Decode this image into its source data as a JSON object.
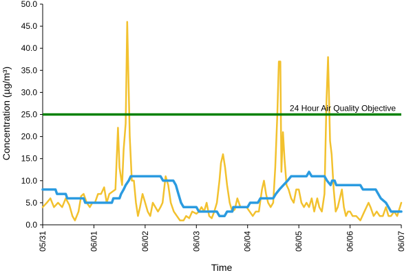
{
  "chart_data": {
    "type": "line",
    "title": "",
    "xlabel": "Time",
    "ylabel": "Concentration (µg/m³)",
    "ylim": [
      0,
      50
    ],
    "xlim": [
      0,
      7
    ],
    "y_tick_labels": [
      "0.0",
      "5.0",
      "10.0",
      "15.0",
      "20.0",
      "25.0",
      "30.0",
      "35.0",
      "40.0",
      "45.0",
      "50.0"
    ],
    "x_tick_labels": [
      "05/31",
      "06/01",
      "06/02",
      "06/03",
      "06/04",
      "06/05",
      "06/06",
      "06/07"
    ],
    "x_unit": "days from 05/31 00:00",
    "grid": false,
    "legend": "none",
    "annotations": [
      {
        "text": "24 Hour Air Quality Objective",
        "y": 25.0
      }
    ],
    "objective_line": {
      "y": 25.0,
      "color": "#008000"
    },
    "series": [
      {
        "color": "#f2c12e",
        "points": [
          [
            0.0,
            4
          ],
          [
            0.08,
            5
          ],
          [
            0.15,
            6
          ],
          [
            0.22,
            4
          ],
          [
            0.3,
            5
          ],
          [
            0.38,
            4
          ],
          [
            0.45,
            6
          ],
          [
            0.52,
            4.5
          ],
          [
            0.58,
            2
          ],
          [
            0.63,
            1
          ],
          [
            0.7,
            3
          ],
          [
            0.75,
            6.5
          ],
          [
            0.8,
            7
          ],
          [
            0.86,
            5
          ],
          [
            0.92,
            4
          ],
          [
            0.97,
            5
          ],
          [
            1.02,
            5
          ],
          [
            1.08,
            7
          ],
          [
            1.14,
            7
          ],
          [
            1.2,
            8.5
          ],
          [
            1.25,
            5
          ],
          [
            1.3,
            7
          ],
          [
            1.36,
            7.5
          ],
          [
            1.42,
            8
          ],
          [
            1.47,
            22
          ],
          [
            1.5,
            13
          ],
          [
            1.55,
            9
          ],
          [
            1.58,
            17
          ],
          [
            1.62,
            23
          ],
          [
            1.65,
            46
          ],
          [
            1.7,
            20
          ],
          [
            1.74,
            10
          ],
          [
            1.78,
            10
          ],
          [
            1.82,
            5
          ],
          [
            1.86,
            2
          ],
          [
            1.9,
            4
          ],
          [
            1.95,
            7
          ],
          [
            2.0,
            5
          ],
          [
            2.05,
            3
          ],
          [
            2.1,
            2
          ],
          [
            2.15,
            5
          ],
          [
            2.2,
            4
          ],
          [
            2.25,
            3
          ],
          [
            2.3,
            4
          ],
          [
            2.34,
            5
          ],
          [
            2.4,
            11
          ],
          [
            2.45,
            9
          ],
          [
            2.5,
            5
          ],
          [
            2.56,
            3
          ],
          [
            2.62,
            2
          ],
          [
            2.68,
            1
          ],
          [
            2.75,
            1
          ],
          [
            2.8,
            2
          ],
          [
            2.86,
            1.5
          ],
          [
            2.92,
            3
          ],
          [
            3.0,
            2.5
          ],
          [
            3.05,
            3
          ],
          [
            3.1,
            4
          ],
          [
            3.15,
            3
          ],
          [
            3.2,
            5
          ],
          [
            3.25,
            2
          ],
          [
            3.3,
            1.5
          ],
          [
            3.35,
            3
          ],
          [
            3.4,
            5
          ],
          [
            3.45,
            10
          ],
          [
            3.48,
            14
          ],
          [
            3.52,
            16
          ],
          [
            3.56,
            13
          ],
          [
            3.6,
            9
          ],
          [
            3.65,
            5
          ],
          [
            3.7,
            3
          ],
          [
            3.75,
            3.5
          ],
          [
            3.8,
            6
          ],
          [
            3.86,
            4
          ],
          [
            3.92,
            4
          ],
          [
            3.98,
            4
          ],
          [
            4.04,
            3
          ],
          [
            4.1,
            2
          ],
          [
            4.16,
            3
          ],
          [
            4.22,
            3
          ],
          [
            4.28,
            8
          ],
          [
            4.32,
            10
          ],
          [
            4.36,
            7
          ],
          [
            4.4,
            5
          ],
          [
            4.45,
            4
          ],
          [
            4.5,
            5
          ],
          [
            4.54,
            13
          ],
          [
            4.58,
            25
          ],
          [
            4.61,
            37
          ],
          [
            4.64,
            37
          ],
          [
            4.66,
            12
          ],
          [
            4.69,
            21
          ],
          [
            4.72,
            15
          ],
          [
            4.76,
            9
          ],
          [
            4.8,
            8
          ],
          [
            4.85,
            6
          ],
          [
            4.9,
            5
          ],
          [
            4.95,
            8
          ],
          [
            5.0,
            8
          ],
          [
            5.05,
            5
          ],
          [
            5.1,
            4
          ],
          [
            5.15,
            5
          ],
          [
            5.2,
            4
          ],
          [
            5.25,
            6
          ],
          [
            5.3,
            3
          ],
          [
            5.36,
            6
          ],
          [
            5.4,
            4
          ],
          [
            5.45,
            3
          ],
          [
            5.5,
            7
          ],
          [
            5.54,
            28
          ],
          [
            5.57,
            38
          ],
          [
            5.61,
            19
          ],
          [
            5.64,
            16
          ],
          [
            5.68,
            8
          ],
          [
            5.72,
            3
          ],
          [
            5.76,
            4
          ],
          [
            5.8,
            6
          ],
          [
            5.84,
            8
          ],
          [
            5.88,
            4
          ],
          [
            5.92,
            2
          ],
          [
            5.96,
            3
          ],
          [
            6.0,
            3
          ],
          [
            6.05,
            2
          ],
          [
            6.12,
            2
          ],
          [
            6.2,
            1
          ],
          [
            6.28,
            3
          ],
          [
            6.36,
            5
          ],
          [
            6.4,
            4
          ],
          [
            6.46,
            2
          ],
          [
            6.52,
            3
          ],
          [
            6.58,
            2
          ],
          [
            6.64,
            2
          ],
          [
            6.7,
            4
          ],
          [
            6.75,
            2
          ],
          [
            6.8,
            2
          ],
          [
            6.86,
            3
          ],
          [
            6.92,
            2
          ],
          [
            7.0,
            5
          ]
        ]
      },
      {
        "color": "#2b9be0",
        "points": [
          [
            0.0,
            8
          ],
          [
            0.25,
            8
          ],
          [
            0.28,
            7
          ],
          [
            0.45,
            7
          ],
          [
            0.48,
            6
          ],
          [
            0.8,
            6
          ],
          [
            0.83,
            5
          ],
          [
            1.35,
            5
          ],
          [
            1.38,
            6
          ],
          [
            1.5,
            6
          ],
          [
            1.53,
            7
          ],
          [
            1.58,
            8
          ],
          [
            1.62,
            9
          ],
          [
            1.68,
            10
          ],
          [
            1.72,
            11
          ],
          [
            2.3,
            11
          ],
          [
            2.35,
            10
          ],
          [
            2.55,
            10
          ],
          [
            2.6,
            9
          ],
          [
            2.65,
            7
          ],
          [
            2.7,
            5
          ],
          [
            2.75,
            4
          ],
          [
            3.0,
            4
          ],
          [
            3.05,
            3
          ],
          [
            3.4,
            3
          ],
          [
            3.45,
            2
          ],
          [
            3.55,
            2
          ],
          [
            3.6,
            3
          ],
          [
            3.7,
            3
          ],
          [
            3.72,
            4
          ],
          [
            4.0,
            4
          ],
          [
            4.05,
            5
          ],
          [
            4.2,
            5
          ],
          [
            4.25,
            6
          ],
          [
            4.5,
            6
          ],
          [
            4.55,
            7
          ],
          [
            4.62,
            8
          ],
          [
            4.7,
            9
          ],
          [
            4.78,
            10
          ],
          [
            4.85,
            11
          ],
          [
            5.15,
            11
          ],
          [
            5.2,
            12
          ],
          [
            5.25,
            11
          ],
          [
            5.5,
            11
          ],
          [
            5.55,
            10
          ],
          [
            5.62,
            9
          ],
          [
            5.65,
            10
          ],
          [
            5.7,
            10
          ],
          [
            5.73,
            9
          ],
          [
            6.2,
            9
          ],
          [
            6.25,
            8
          ],
          [
            6.5,
            8
          ],
          [
            6.6,
            6
          ],
          [
            6.7,
            5
          ],
          [
            6.8,
            3
          ],
          [
            7.0,
            3
          ]
        ]
      }
    ]
  }
}
